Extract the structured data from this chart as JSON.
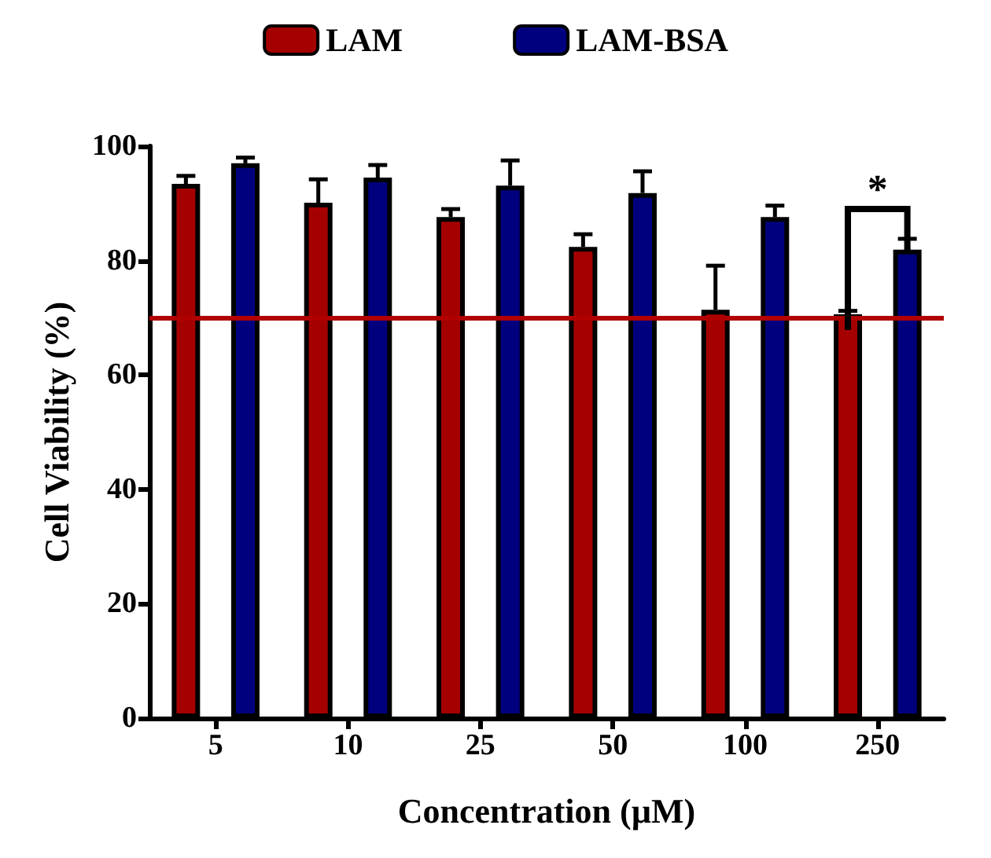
{
  "chart_data": {
    "type": "bar",
    "xlabel": "Concentration (µM)",
    "ylabel": "Cell Viability (%)",
    "categories": [
      "5",
      "10",
      "25",
      "50",
      "100",
      "250"
    ],
    "series": [
      {
        "name": "LAM",
        "color": "#a50000",
        "values": [
          93.4,
          90.1,
          87.6,
          82.4,
          71.4,
          70.6
        ],
        "errors": [
          [
            93.4,
            94.8
          ],
          [
            90.1,
            94.2
          ],
          [
            87.6,
            89.0
          ],
          [
            82.4,
            84.6
          ],
          [
            71.4,
            79.1
          ],
          [
            70.6,
            71.2
          ]
        ]
      },
      {
        "name": "LAM-BSA",
        "color": "#00007f",
        "values": [
          97.0,
          94.5,
          93.1,
          91.8,
          87.6,
          81.9
        ],
        "errors": [
          [
            97.0,
            98.0
          ],
          [
            94.5,
            96.7
          ],
          [
            93.1,
            97.5
          ],
          [
            91.8,
            95.6
          ],
          [
            87.6,
            89.6
          ],
          [
            81.9,
            83.8
          ]
        ]
      }
    ],
    "ylim": [
      0,
      100
    ],
    "yticks": [
      0,
      20,
      40,
      60,
      80,
      100
    ],
    "grid": false,
    "legend": "top",
    "ref_lines": [
      {
        "axis": "y",
        "value": 70,
        "color": "#b00000"
      }
    ],
    "annotations": [
      "*"
    ]
  }
}
